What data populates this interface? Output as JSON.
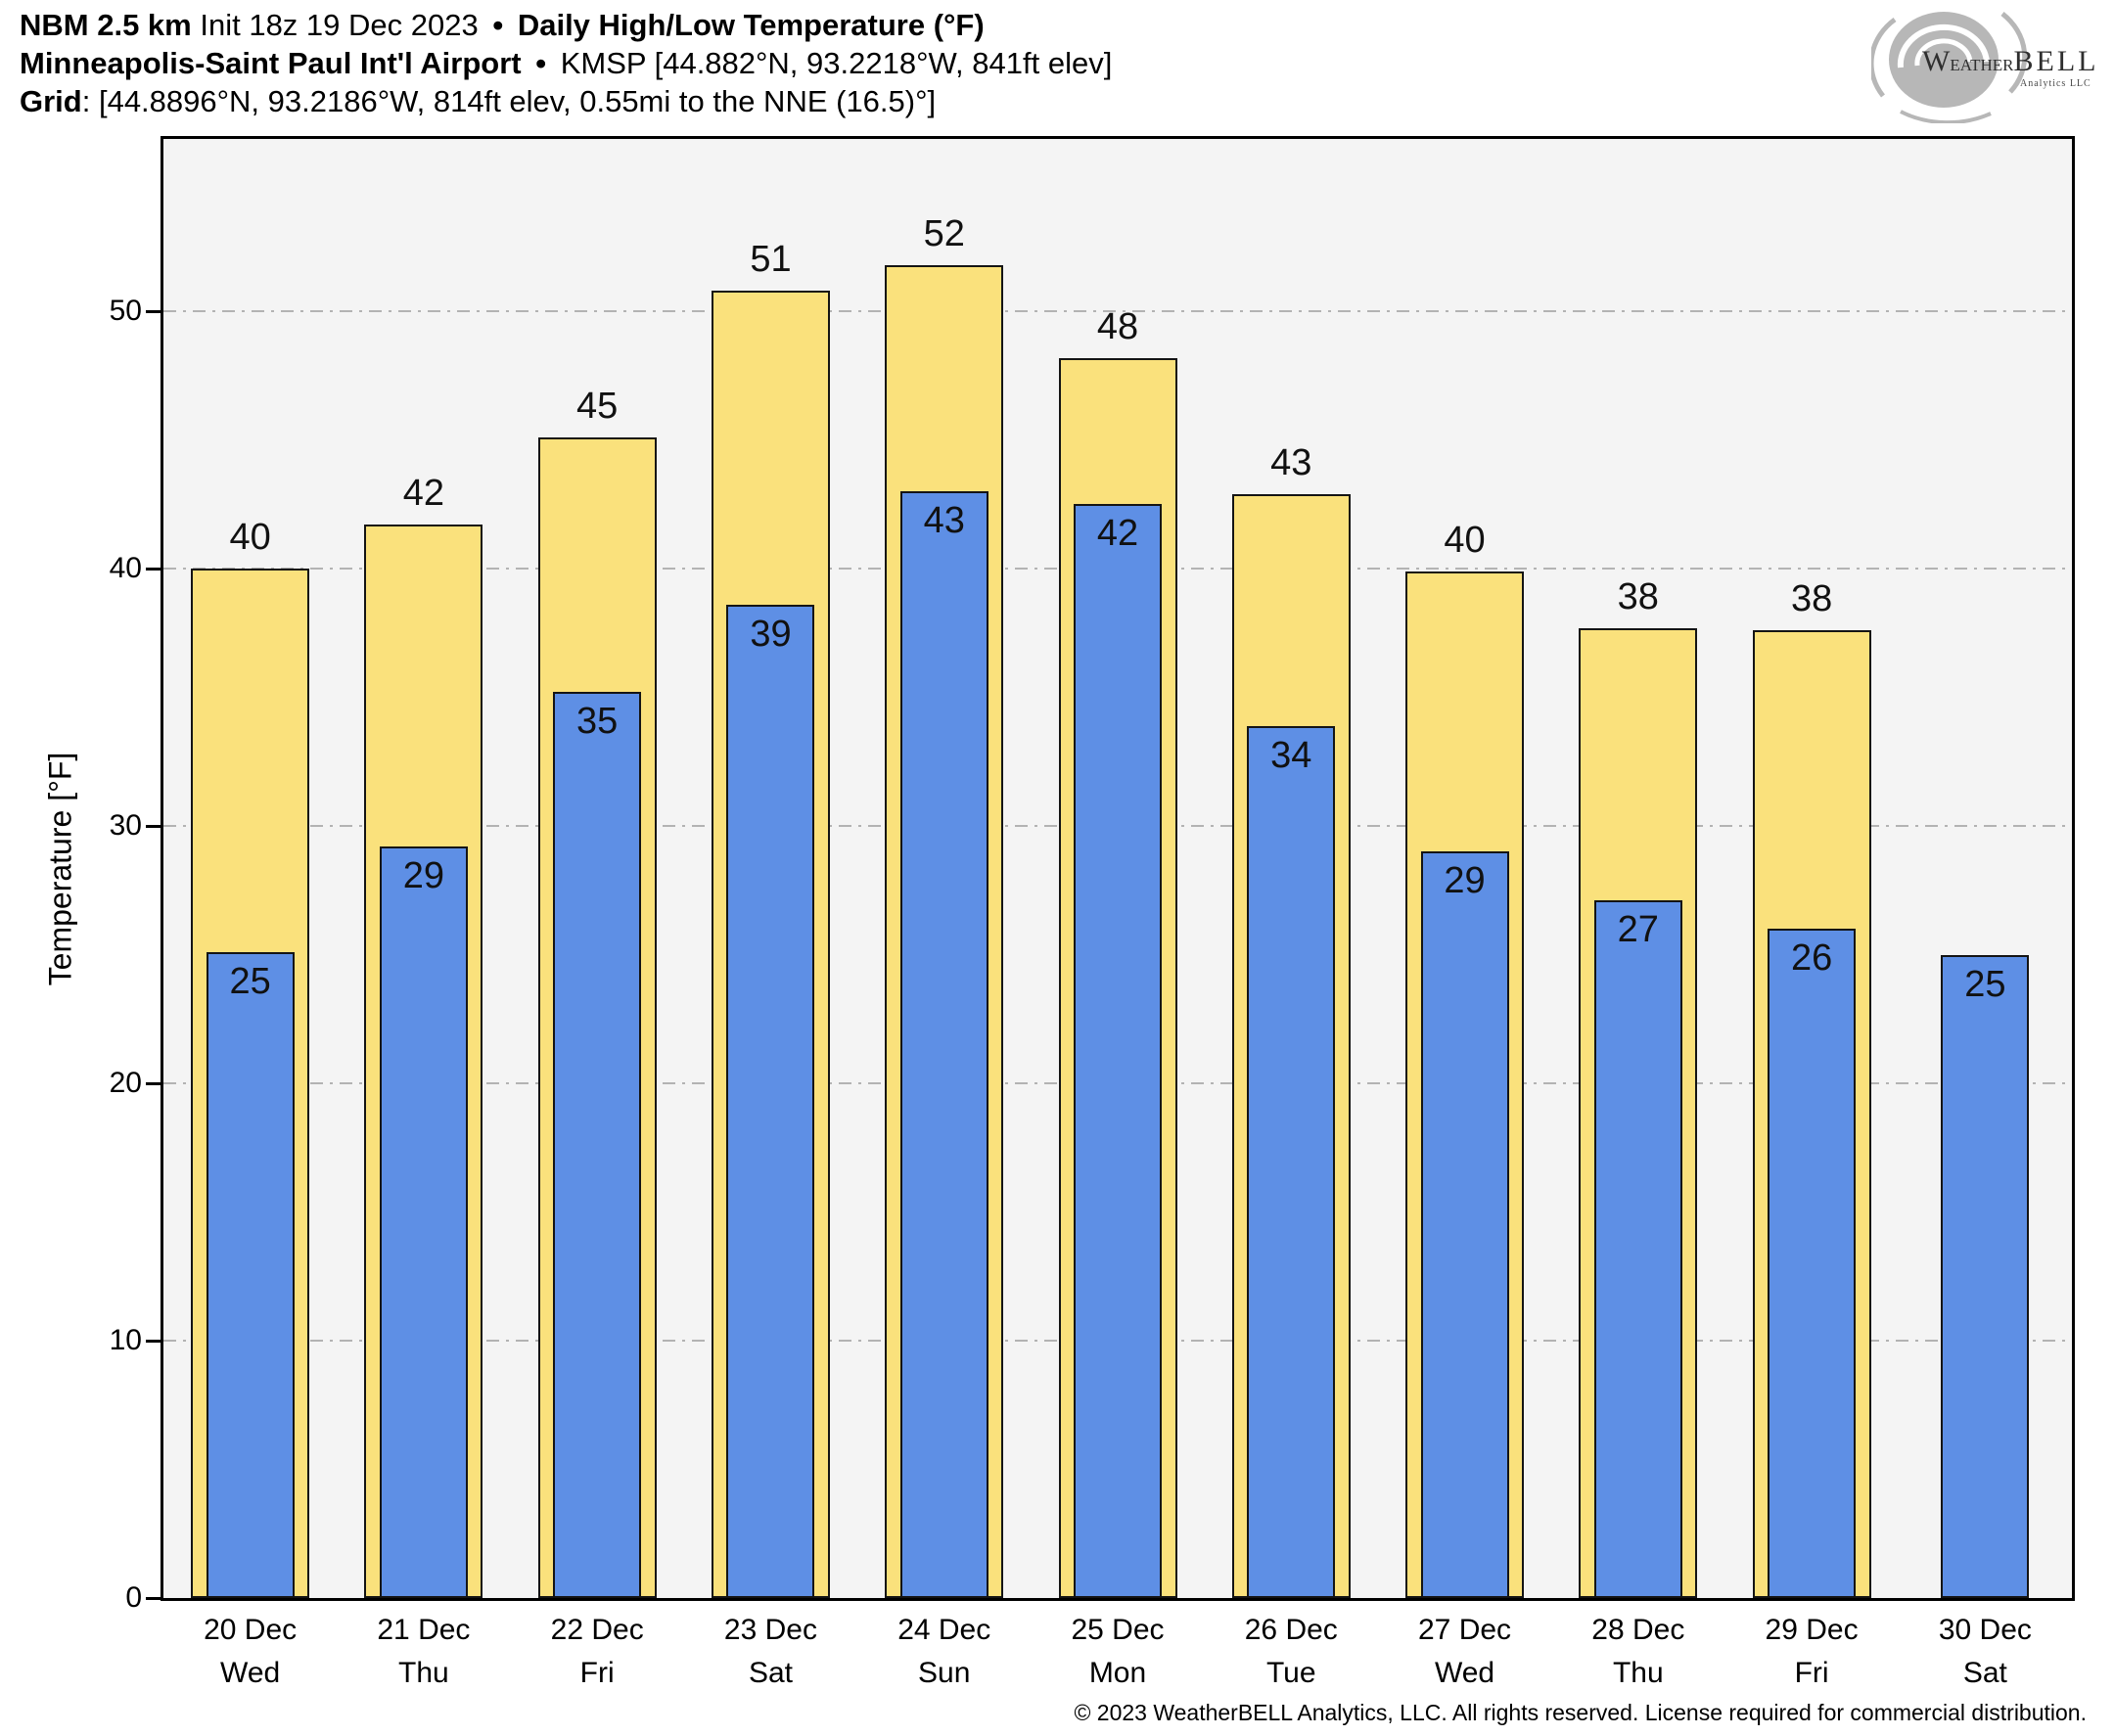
{
  "header": {
    "line1": {
      "model": "NBM 2.5 km",
      "init": "Init 18z 19 Dec 2023",
      "sep": "•",
      "chart_title": "Daily High/Low Temperature (°F)"
    },
    "line2": {
      "station": "Minneapolis-Saint Paul Int'l Airport",
      "sep": "•",
      "details": "KMSP [44.882°N, 93.2218°W, 841ft elev]"
    },
    "line3": {
      "label": "Grid",
      "details": ": [44.8896°N, 93.2186°W, 814ft elev, 0.55mi to the NNE (16.5)°]"
    }
  },
  "logo": {
    "brand_w": "W",
    "brand_eather": "EATHER",
    "brand_bell": "BELL",
    "subtext": "Analytics LLC"
  },
  "footer": {
    "copyright": "© 2023 WeatherBELL Analytics, LLC. All rights reserved. License required for commercial distribution."
  },
  "chart_data": {
    "type": "bar",
    "title": "Daily High/Low Temperature (°F)",
    "xlabel": "",
    "ylabel": "Temperature [°F]",
    "ylim": [
      0,
      56.7
    ],
    "yticks": [
      0,
      10,
      20,
      30,
      40,
      50
    ],
    "grid": "horizontal dash-dot lines at 10,20,30,40,50",
    "grid_color": "#b3b3b3",
    "plot_bg": "#f4f4f4",
    "bar_border": "#141414",
    "legend": "none",
    "categories": [
      {
        "date": "20 Dec",
        "day": "Wed"
      },
      {
        "date": "21 Dec",
        "day": "Thu"
      },
      {
        "date": "22 Dec",
        "day": "Fri"
      },
      {
        "date": "23 Dec",
        "day": "Sat"
      },
      {
        "date": "24 Dec",
        "day": "Sun"
      },
      {
        "date": "25 Dec",
        "day": "Mon"
      },
      {
        "date": "26 Dec",
        "day": "Tue"
      },
      {
        "date": "27 Dec",
        "day": "Wed"
      },
      {
        "date": "28 Dec",
        "day": "Thu"
      },
      {
        "date": "29 Dec",
        "day": "Fri"
      },
      {
        "date": "30 Dec",
        "day": "Sat"
      }
    ],
    "series": [
      {
        "name": "High",
        "color": "#FAE17C",
        "labels": [
          40,
          42,
          45,
          51,
          52,
          48,
          43,
          40,
          38,
          38,
          null
        ],
        "values": [
          40.0,
          41.7,
          45.1,
          50.8,
          51.8,
          48.2,
          42.9,
          39.9,
          37.7,
          37.6,
          null
        ]
      },
      {
        "name": "Low",
        "color": "#5E8FE5",
        "labels": [
          25,
          29,
          35,
          39,
          43,
          42,
          34,
          29,
          27,
          26,
          25
        ],
        "values": [
          25.1,
          29.2,
          35.2,
          38.6,
          43.0,
          42.5,
          33.9,
          29.0,
          27.1,
          26.0,
          25.0
        ]
      }
    ]
  }
}
